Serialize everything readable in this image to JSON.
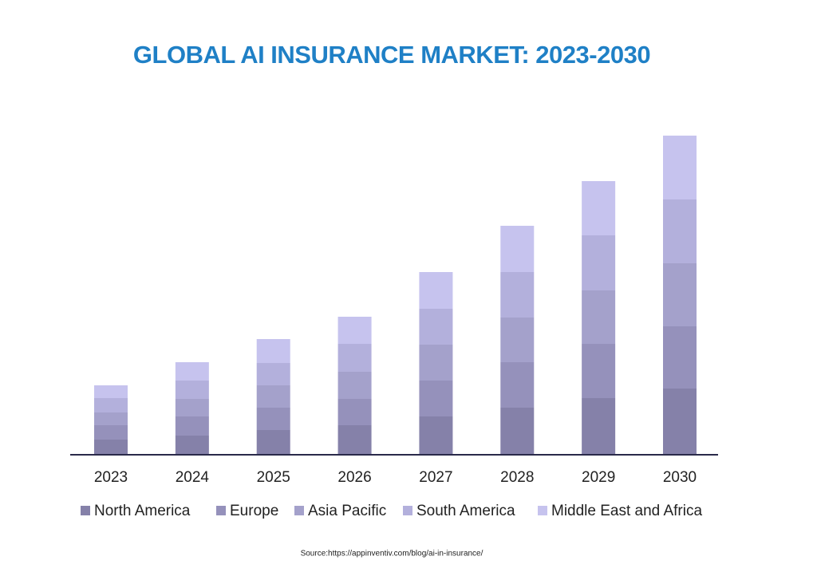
{
  "chart_data": {
    "type": "stacked-bar",
    "title": "GLOBAL AI INSURANCE MARKET: 2023-2030",
    "source": "Source:https://appinventiv.com/blog/ai-in-insurance/",
    "categories": [
      "2023",
      "2024",
      "2025",
      "2026",
      "2027",
      "2028",
      "2029",
      "2030"
    ],
    "series": [
      {
        "name": "North America",
        "color": "#8581a9",
        "values": [
          18,
          23,
          30,
          36,
          47,
          58,
          70,
          82
        ]
      },
      {
        "name": "Europe",
        "color": "#9591bb",
        "values": [
          18,
          24,
          28,
          33,
          45,
          57,
          68,
          78
        ]
      },
      {
        "name": "Asia Pacific",
        "color": "#a4a1cb",
        "values": [
          16,
          22,
          28,
          34,
          45,
          56,
          67,
          79
        ]
      },
      {
        "name": "South America",
        "color": "#b3b0dc",
        "values": [
          18,
          23,
          28,
          35,
          45,
          57,
          69,
          80
        ]
      },
      {
        "name": "Middle East and Africa",
        "color": "#c6c3ee",
        "values": [
          16,
          23,
          30,
          34,
          46,
          58,
          68,
          80
        ]
      }
    ]
  }
}
